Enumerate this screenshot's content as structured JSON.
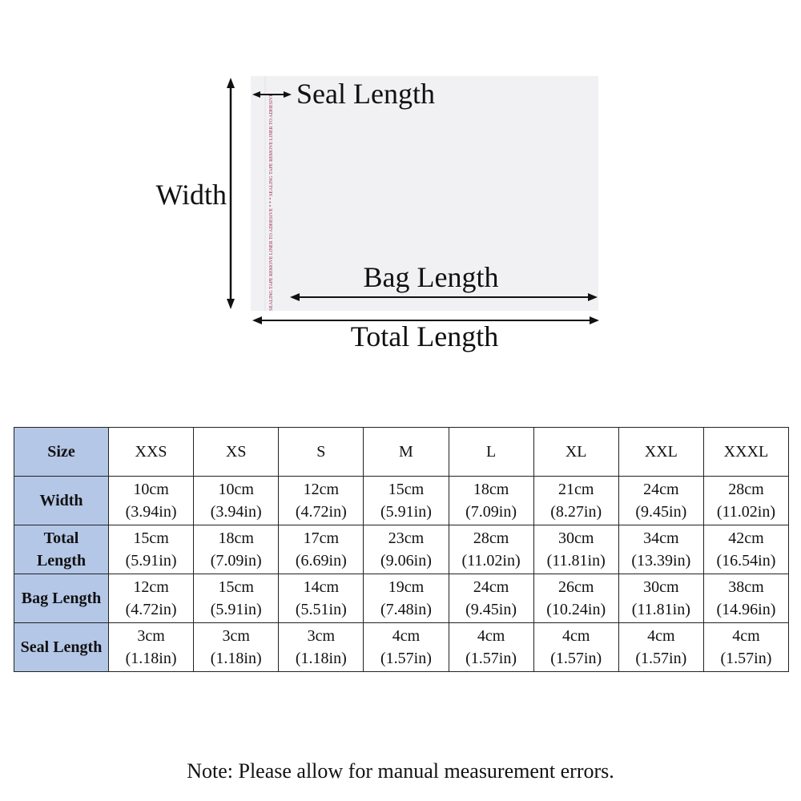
{
  "diagram": {
    "width_label": "Width",
    "seal_length_label": "Seal Length",
    "bag_length_label": "Bag Length",
    "total_length_label": "Total Length",
    "seal_tape_text": "SEALING TAPE  REMOVE LINER TO ADHESIVE  * * *  SEALING TAPE  REMOVE LINER TO ADHESIVE"
  },
  "table": {
    "header": [
      "Size",
      "XXS",
      "XS",
      "S",
      "M",
      "L",
      "XL",
      "XXL",
      "XXXL"
    ],
    "rows": [
      {
        "label": "Width",
        "cells": [
          [
            "10cm",
            "(3.94in)"
          ],
          [
            "10cm",
            "(3.94in)"
          ],
          [
            "12cm",
            "(4.72in)"
          ],
          [
            "15cm",
            "(5.91in)"
          ],
          [
            "18cm",
            "(7.09in)"
          ],
          [
            "21cm",
            "(8.27in)"
          ],
          [
            "24cm",
            "(9.45in)"
          ],
          [
            "28cm",
            "(11.02in)"
          ]
        ]
      },
      {
        "label": "Total Length",
        "cells": [
          [
            "15cm",
            "(5.91in)"
          ],
          [
            "18cm",
            "(7.09in)"
          ],
          [
            "17cm",
            "(6.69in)"
          ],
          [
            "23cm",
            "(9.06in)"
          ],
          [
            "28cm",
            "(11.02in)"
          ],
          [
            "30cm",
            "(11.81in)"
          ],
          [
            "34cm",
            "(13.39in)"
          ],
          [
            "42cm",
            "(16.54in)"
          ]
        ]
      },
      {
        "label": "Bag Length",
        "cells": [
          [
            "12cm",
            "(4.72in)"
          ],
          [
            "15cm",
            "(5.91in)"
          ],
          [
            "14cm",
            "(5.51in)"
          ],
          [
            "19cm",
            "(7.48in)"
          ],
          [
            "24cm",
            "(9.45in)"
          ],
          [
            "26cm",
            "(10.24in)"
          ],
          [
            "30cm",
            "(11.81in)"
          ],
          [
            "38cm",
            "(14.96in)"
          ]
        ]
      },
      {
        "label": "Seal Length",
        "cells": [
          [
            "3cm",
            "(1.18in)"
          ],
          [
            "3cm",
            "(1.18in)"
          ],
          [
            "3cm",
            "(1.18in)"
          ],
          [
            "4cm",
            "(1.57in)"
          ],
          [
            "4cm",
            "(1.57in)"
          ],
          [
            "4cm",
            "(1.57in)"
          ],
          [
            "4cm",
            "(1.57in)"
          ],
          [
            "4cm",
            "(1.57in)"
          ]
        ]
      }
    ]
  },
  "note": "Note: Please allow for manual measurement errors."
}
